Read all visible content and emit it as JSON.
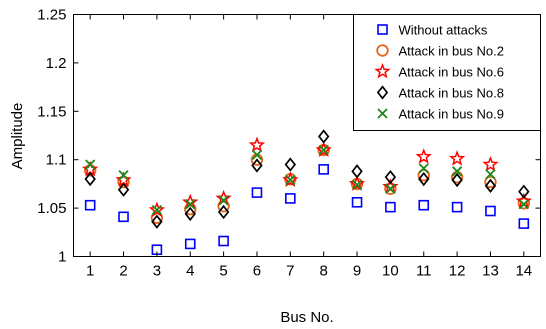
{
  "chart_data": {
    "type": "scatter",
    "title": "",
    "xlabel": "Bus No.",
    "ylabel": "Amplitude",
    "xlim": [
      0.5,
      14.5
    ],
    "ylim": [
      1,
      1.25
    ],
    "x": [
      1,
      2,
      3,
      4,
      5,
      6,
      7,
      8,
      9,
      10,
      11,
      12,
      13,
      14
    ],
    "xticks": [
      "1",
      "2",
      "3",
      "4",
      "5",
      "6",
      "7",
      "8",
      "9",
      "10",
      "11",
      "12",
      "13",
      "14"
    ],
    "yticks": [
      "1",
      "1.05",
      "1.1",
      "1.15",
      "1.2",
      "1.25"
    ],
    "ytick_values": [
      1,
      1.05,
      1.1,
      1.15,
      1.2,
      1.25
    ],
    "grid": false,
    "legend_position": "top-right",
    "series": [
      {
        "name": "Without attacks",
        "marker": "square",
        "color": "#0000ff",
        "values": [
          1.053,
          1.041,
          1.007,
          1.013,
          1.016,
          1.066,
          1.06,
          1.09,
          1.056,
          1.051,
          1.053,
          1.051,
          1.047,
          1.034
        ]
      },
      {
        "name": "Attack in bus No.2",
        "marker": "circle",
        "color": "#e8641a",
        "values": [
          1.089,
          1.077,
          1.04,
          1.049,
          1.052,
          1.1,
          1.08,
          1.11,
          1.075,
          1.07,
          1.084,
          1.082,
          1.077,
          1.055
        ]
      },
      {
        "name": "Attack in bus No.6",
        "marker": "star",
        "color": "#ff0000",
        "values": [
          1.09,
          1.079,
          1.048,
          1.056,
          1.06,
          1.115,
          1.079,
          1.11,
          1.075,
          1.072,
          1.103,
          1.101,
          1.095,
          1.057
        ]
      },
      {
        "name": "Attack in bus No.8",
        "marker": "diamond",
        "color": "#000000",
        "values": [
          1.08,
          1.069,
          1.036,
          1.044,
          1.046,
          1.094,
          1.095,
          1.124,
          1.088,
          1.082,
          1.08,
          1.079,
          1.073,
          1.067
        ]
      },
      {
        "name": "Attack in bus No.9",
        "marker": "x",
        "color": "#1a8a1a",
        "values": [
          1.095,
          1.084,
          1.048,
          1.054,
          1.058,
          1.105,
          1.079,
          1.11,
          1.074,
          1.07,
          1.091,
          1.088,
          1.085,
          1.054
        ]
      }
    ]
  }
}
